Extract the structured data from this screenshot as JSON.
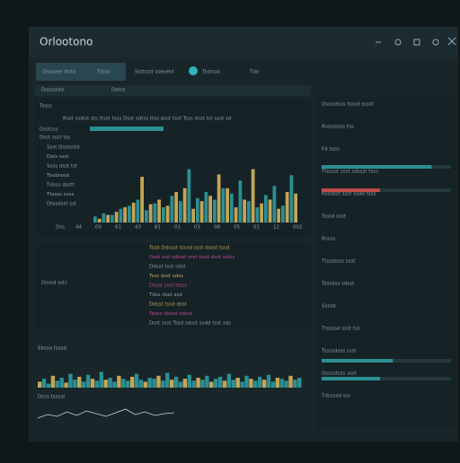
{
  "title": "Orlootono",
  "toolbar": {
    "tab_active": "Dssseer ttsto",
    "tab": "Ttsso",
    "breadcrumb": "Ssttsstt ssesetd",
    "status": "Tsstssd",
    "filter": "Tdo"
  },
  "left": {
    "header": "Dsssstdis",
    "sub": "Datss",
    "panel_title": "Tssss",
    "summary": "Rsst ssstst sts ttsst tsss  Dsst sdtss ttss dsst tsst  Tsss dsst tst ssst sd",
    "legend_a": "Dsstsss",
    "legend_b": "Dsst ssst tss",
    "chart_labels": [
      "Ssst Dsstsstd",
      "Dsts ssst",
      "Ssss dsst tst",
      "Tssdsssst",
      "Tdsss dsstt",
      "Ttssss ssss",
      "Dtssdsst sst"
    ],
    "x_labels": [
      "Dss",
      "44",
      "00",
      "61",
      "43",
      "81",
      "01",
      "03",
      "08",
      "05",
      "01",
      "12",
      "002"
    ],
    "bars": {
      "ylim": [
        0,
        100
      ],
      "series": [
        {
          "name": "Dsstsss",
          "color": "#2c8f93",
          "values": [
            8,
            12,
            10,
            18,
            22,
            30,
            16,
            25,
            20,
            35,
            28,
            70,
            32,
            40,
            30,
            45,
            38,
            55,
            28,
            20,
            36,
            48,
            22,
            62
          ]
        },
        {
          "name": "Dsst ssst tss",
          "color": "#c4a655",
          "values": [
            5,
            10,
            14,
            20,
            26,
            60,
            24,
            30,
            22,
            40,
            45,
            18,
            28,
            35,
            63,
            45,
            20,
            30,
            70,
            25,
            30,
            18,
            40,
            38
          ]
        }
      ]
    },
    "log": {
      "label": "Dsssd ssts",
      "lines": [
        "Tssd Ddssst tsssd ssst dssst tssd",
        "Dsst ssd sdtsst ssst tssd dsst sstss",
        "Ddsst tsst sdst",
        "Tsss dsst sdss",
        "Dssst ssst ttsss",
        "Tdss dsst ssd",
        "Ddsst tssd dsst",
        "Tsdss dsssd sdsst",
        "Dsst ssst Tssd sdsst ssdd tsst sds"
      ]
    },
    "wave_title": "Ebsso fsssd",
    "wave_label": "Dsss tsssst",
    "wave": {
      "ylim": [
        0,
        100
      ],
      "values": [
        30,
        45,
        20,
        60,
        35,
        50,
        25,
        70,
        40,
        55,
        30,
        65,
        45,
        35,
        80,
        40,
        50,
        30,
        60,
        45,
        35,
        55,
        70,
        40,
        30,
        50,
        45,
        60,
        35,
        75,
        40,
        55,
        30,
        45,
        65,
        35,
        50,
        40,
        60,
        30,
        45,
        55,
        35,
        70,
        40,
        50,
        30,
        60,
        45,
        35,
        55,
        40,
        65,
        30,
        50,
        45,
        35,
        60,
        40,
        50
      ]
    },
    "line": {
      "ylim": [
        0,
        100
      ],
      "values": [
        20,
        40,
        30,
        55,
        35,
        60,
        45,
        30,
        50,
        70,
        40,
        55,
        35,
        45,
        50
      ]
    }
  },
  "right": {
    "rows": [
      "Dsssstsss tsssd sssst",
      "Rsssstsss tss",
      "Fd ssss",
      "Ttsssst ssst sdssst tsss",
      "Rssdsst ssst ssdd tsss",
      "Tsssd ssst",
      "Rssss",
      "Ttssstsss ssst",
      "Tsssdss sdsst",
      "Ssssd",
      "Ttssssd ssst tss",
      "Tssssdsss ssst",
      "Dsssstsss ssst",
      "Tdssssd sss"
    ],
    "progress": [
      {
        "color": "#2c8f93",
        "value": 85
      },
      {
        "color": "#c14a4a",
        "value": 45
      },
      {
        "color": "#2c8f93",
        "value": 55
      },
      {
        "color": "#2c8f93",
        "value": 45
      }
    ]
  }
}
